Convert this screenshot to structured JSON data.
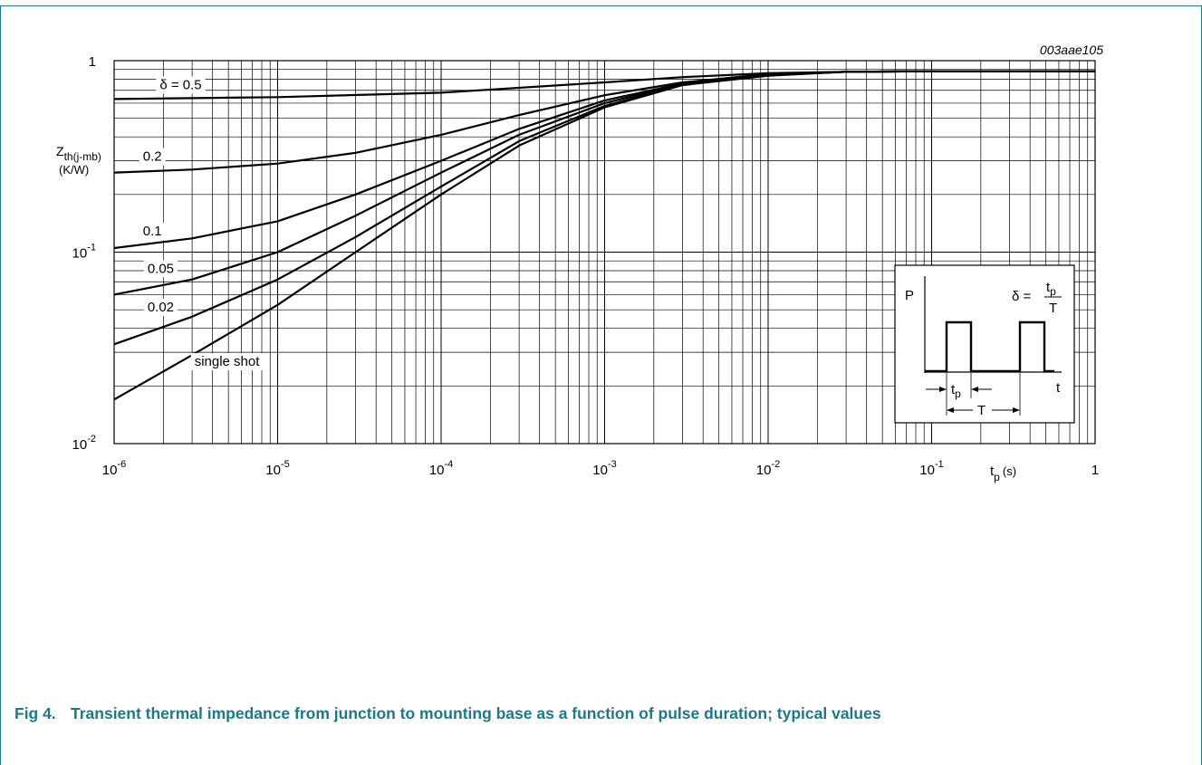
{
  "figure": {
    "id": "003aae105",
    "number": "Fig 4.",
    "caption": "Transient thermal impedance from junction to mounting base as a function of pulse duration; typical values"
  },
  "chart_data": {
    "type": "line",
    "x_scale": "log",
    "y_scale": "log",
    "xlim": [
      1e-06,
      1
    ],
    "ylim": [
      0.01,
      1
    ],
    "grid": true,
    "x_ticks": [
      {
        "value": 1e-06,
        "base": "10",
        "exp": "-6"
      },
      {
        "value": 1e-05,
        "base": "10",
        "exp": "-5"
      },
      {
        "value": 0.0001,
        "base": "10",
        "exp": "-4"
      },
      {
        "value": 0.001,
        "base": "10",
        "exp": "-3"
      },
      {
        "value": 0.01,
        "base": "10",
        "exp": "-2"
      },
      {
        "value": 0.1,
        "base": "10",
        "exp": "-1"
      },
      {
        "value": 1,
        "base": "1",
        "exp": ""
      }
    ],
    "y_ticks": [
      {
        "value": 1,
        "base": "1",
        "exp": ""
      },
      {
        "value": 0.1,
        "base": "10",
        "exp": "-1"
      },
      {
        "value": 0.01,
        "base": "10",
        "exp": "-2"
      }
    ],
    "xlabel": {
      "main": "t",
      "sub": "p",
      "unit": "(s)"
    },
    "ylabel": {
      "main": "Z",
      "sub": "th(j-mb)",
      "unit": "(K/W)"
    },
    "series": [
      {
        "name": "δ = 0.5",
        "x": [
          1e-06,
          1e-05,
          0.0001,
          0.001,
          0.003,
          0.01,
          0.03,
          0.1,
          1
        ],
        "y": [
          0.63,
          0.645,
          0.68,
          0.77,
          0.82,
          0.86,
          0.875,
          0.88,
          0.88
        ]
      },
      {
        "name": "0.2",
        "x": [
          1e-06,
          3e-06,
          1e-05,
          3e-05,
          0.0001,
          0.0003,
          0.001,
          0.003,
          0.01,
          0.03,
          0.1,
          1
        ],
        "y": [
          0.26,
          0.27,
          0.29,
          0.33,
          0.41,
          0.52,
          0.66,
          0.77,
          0.85,
          0.875,
          0.88,
          0.88
        ]
      },
      {
        "name": "0.1",
        "x": [
          1e-06,
          3e-06,
          1e-05,
          3e-05,
          0.0001,
          0.0003,
          0.001,
          0.003,
          0.01,
          0.03,
          0.1,
          1
        ],
        "y": [
          0.105,
          0.118,
          0.145,
          0.2,
          0.3,
          0.44,
          0.62,
          0.76,
          0.845,
          0.875,
          0.88,
          0.88
        ]
      },
      {
        "name": "0.05",
        "x": [
          1e-06,
          3e-06,
          1e-05,
          3e-05,
          0.0001,
          0.0003,
          0.001,
          0.003,
          0.01,
          0.03,
          0.1,
          1
        ],
        "y": [
          0.06,
          0.072,
          0.1,
          0.155,
          0.26,
          0.41,
          0.6,
          0.755,
          0.84,
          0.875,
          0.88,
          0.88
        ]
      },
      {
        "name": "0.02",
        "x": [
          1e-06,
          3e-06,
          1e-05,
          3e-05,
          0.0001,
          0.0003,
          0.001,
          0.003,
          0.01,
          0.03,
          0.1,
          1
        ],
        "y": [
          0.033,
          0.046,
          0.072,
          0.12,
          0.22,
          0.38,
          0.58,
          0.75,
          0.84,
          0.875,
          0.88,
          0.88
        ]
      },
      {
        "name": "single shot",
        "x": [
          1e-06,
          3e-06,
          1e-05,
          3e-05,
          0.0001,
          0.0003,
          0.001,
          0.003,
          0.01,
          0.03,
          0.1,
          1
        ],
        "y": [
          0.017,
          0.029,
          0.053,
          0.1,
          0.2,
          0.36,
          0.57,
          0.745,
          0.835,
          0.875,
          0.88,
          0.88
        ]
      }
    ],
    "series_labels": [
      {
        "text": "δ = 0.5",
        "x": 1.9e-06,
        "y": 0.71
      },
      {
        "text": "0.2",
        "x": 1.5e-06,
        "y": 0.3
      },
      {
        "text": "0.1",
        "x": 1.5e-06,
        "y": 0.122
      },
      {
        "text": "0.05",
        "x": 1.6e-06,
        "y": 0.078
      },
      {
        "text": "0.02",
        "x": 1.6e-06,
        "y": 0.049
      },
      {
        "text": "single shot",
        "x": 3.1e-06,
        "y": 0.0255
      }
    ]
  },
  "inset": {
    "p_label": "P",
    "t_label": "t",
    "delta_lhs": "δ =",
    "numerator_main": "t",
    "numerator_sub": "p",
    "denominator": "T",
    "tp_main": "t",
    "tp_sub": "p",
    "period_label": "T"
  }
}
